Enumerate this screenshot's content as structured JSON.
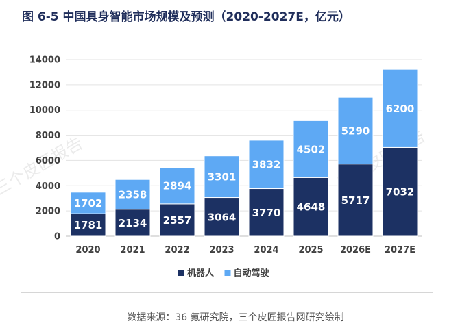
{
  "title": "图  6-5  中国具身智能市场规模及预测（2020-2027E，亿元）",
  "source": "数据来源：36 氪研究院，三个皮匠报告网研究绘制",
  "watermark": "三个皮匠报告",
  "chart_data": {
    "type": "bar",
    "stacked": true,
    "title": "图  6-5  中国具身智能市场规模及预测（2020-2027E，亿元）",
    "categories": [
      "2020",
      "2021",
      "2022",
      "2023",
      "2024",
      "2025",
      "2026E",
      "2027E"
    ],
    "series": [
      {
        "name": "机器人",
        "color": "#1c3163",
        "values": [
          1781,
          2134,
          2557,
          3064,
          3770,
          4648,
          5717,
          7032
        ]
      },
      {
        "name": "自动驾驶",
        "color": "#5ea9f4",
        "values": [
          1702,
          2358,
          2894,
          3301,
          3832,
          4502,
          5290,
          6200
        ]
      }
    ],
    "ylim": [
      0,
      14000
    ],
    "yticks": [
      0,
      2000,
      4000,
      6000,
      8000,
      10000,
      12000,
      14000
    ],
    "grid": true,
    "legend": "bottom-center"
  }
}
